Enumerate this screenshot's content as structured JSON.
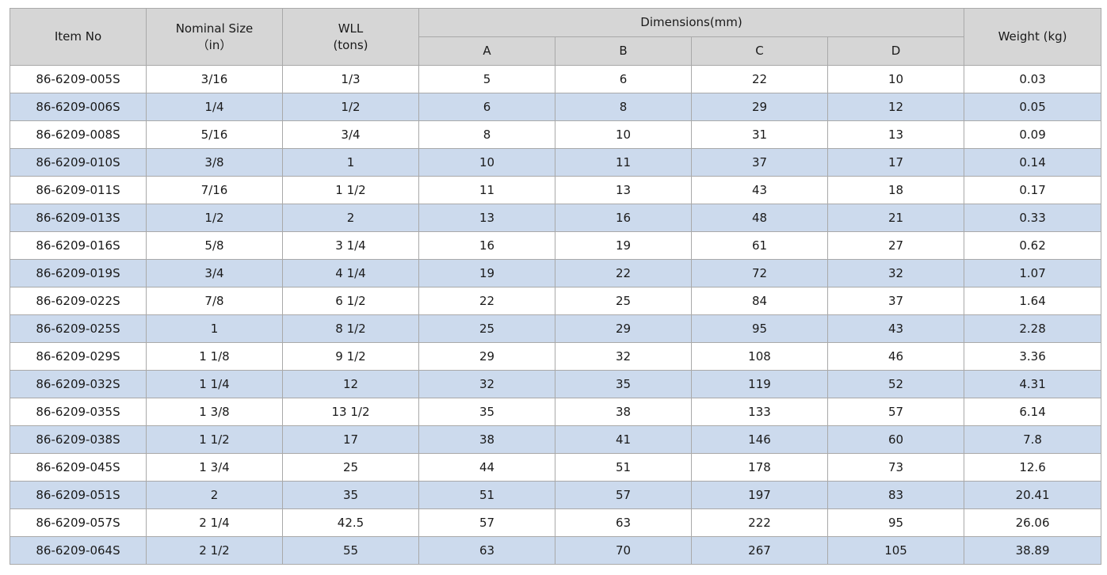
{
  "headers": {
    "item_no": "Item No",
    "nominal_size_line1": "Nominal Size",
    "nominal_size_line2": "（in）",
    "wll_line1": "WLL",
    "wll_line2": "(tons)",
    "dimensions": "Dimensions(mm)",
    "dim_a": "A",
    "dim_b": "B",
    "dim_c": "C",
    "dim_d": "D",
    "weight": "Weight (kg)"
  },
  "rows": [
    [
      "86-6209-005S",
      "3/16",
      "1/3",
      "5",
      "6",
      "22",
      "10",
      "0.03"
    ],
    [
      "86-6209-006S",
      "1/4",
      "1/2",
      "6",
      "8",
      "29",
      "12",
      "0.05"
    ],
    [
      "86-6209-008S",
      "5/16",
      "3/4",
      "8",
      "10",
      "31",
      "13",
      "0.09"
    ],
    [
      "86-6209-010S",
      "3/8",
      "1",
      "10",
      "11",
      "37",
      "17",
      "0.14"
    ],
    [
      "86-6209-011S",
      "7/16",
      "1 1/2",
      "11",
      "13",
      "43",
      "18",
      "0.17"
    ],
    [
      "86-6209-013S",
      "1/2",
      "2",
      "13",
      "16",
      "48",
      "21",
      "0.33"
    ],
    [
      "86-6209-016S",
      "5/8",
      "3 1/4",
      "16",
      "19",
      "61",
      "27",
      "0.62"
    ],
    [
      "86-6209-019S",
      "3/4",
      "4 1/4",
      "19",
      "22",
      "72",
      "32",
      "1.07"
    ],
    [
      "86-6209-022S",
      "7/8",
      "6 1/2",
      "22",
      "25",
      "84",
      "37",
      "1.64"
    ],
    [
      "86-6209-025S",
      "1",
      "8 1/2",
      "25",
      "29",
      "95",
      "43",
      "2.28"
    ],
    [
      "86-6209-029S",
      "1 1/8",
      "9 1/2",
      "29",
      "32",
      "108",
      "46",
      "3.36"
    ],
    [
      "86-6209-032S",
      "1 1/4",
      "12",
      "32",
      "35",
      "119",
      "52",
      "4.31"
    ],
    [
      "86-6209-035S",
      "1 3/8",
      "13 1/2",
      "35",
      "38",
      "133",
      "57",
      "6.14"
    ],
    [
      "86-6209-038S",
      "1 1/2",
      "17",
      "38",
      "41",
      "146",
      "60",
      "7.8"
    ],
    [
      "86-6209-045S",
      "1 3/4",
      "25",
      "44",
      "51",
      "178",
      "73",
      "12.6"
    ],
    [
      "86-6209-051S",
      "2",
      "35",
      "51",
      "57",
      "197",
      "83",
      "20.41"
    ],
    [
      "86-6209-057S",
      "2 1/4",
      "42.5",
      "57",
      "63",
      "222",
      "95",
      "26.06"
    ],
    [
      "86-6209-064S",
      "2 1/2",
      "55",
      "63",
      "70",
      "267",
      "105",
      "38.89"
    ]
  ]
}
